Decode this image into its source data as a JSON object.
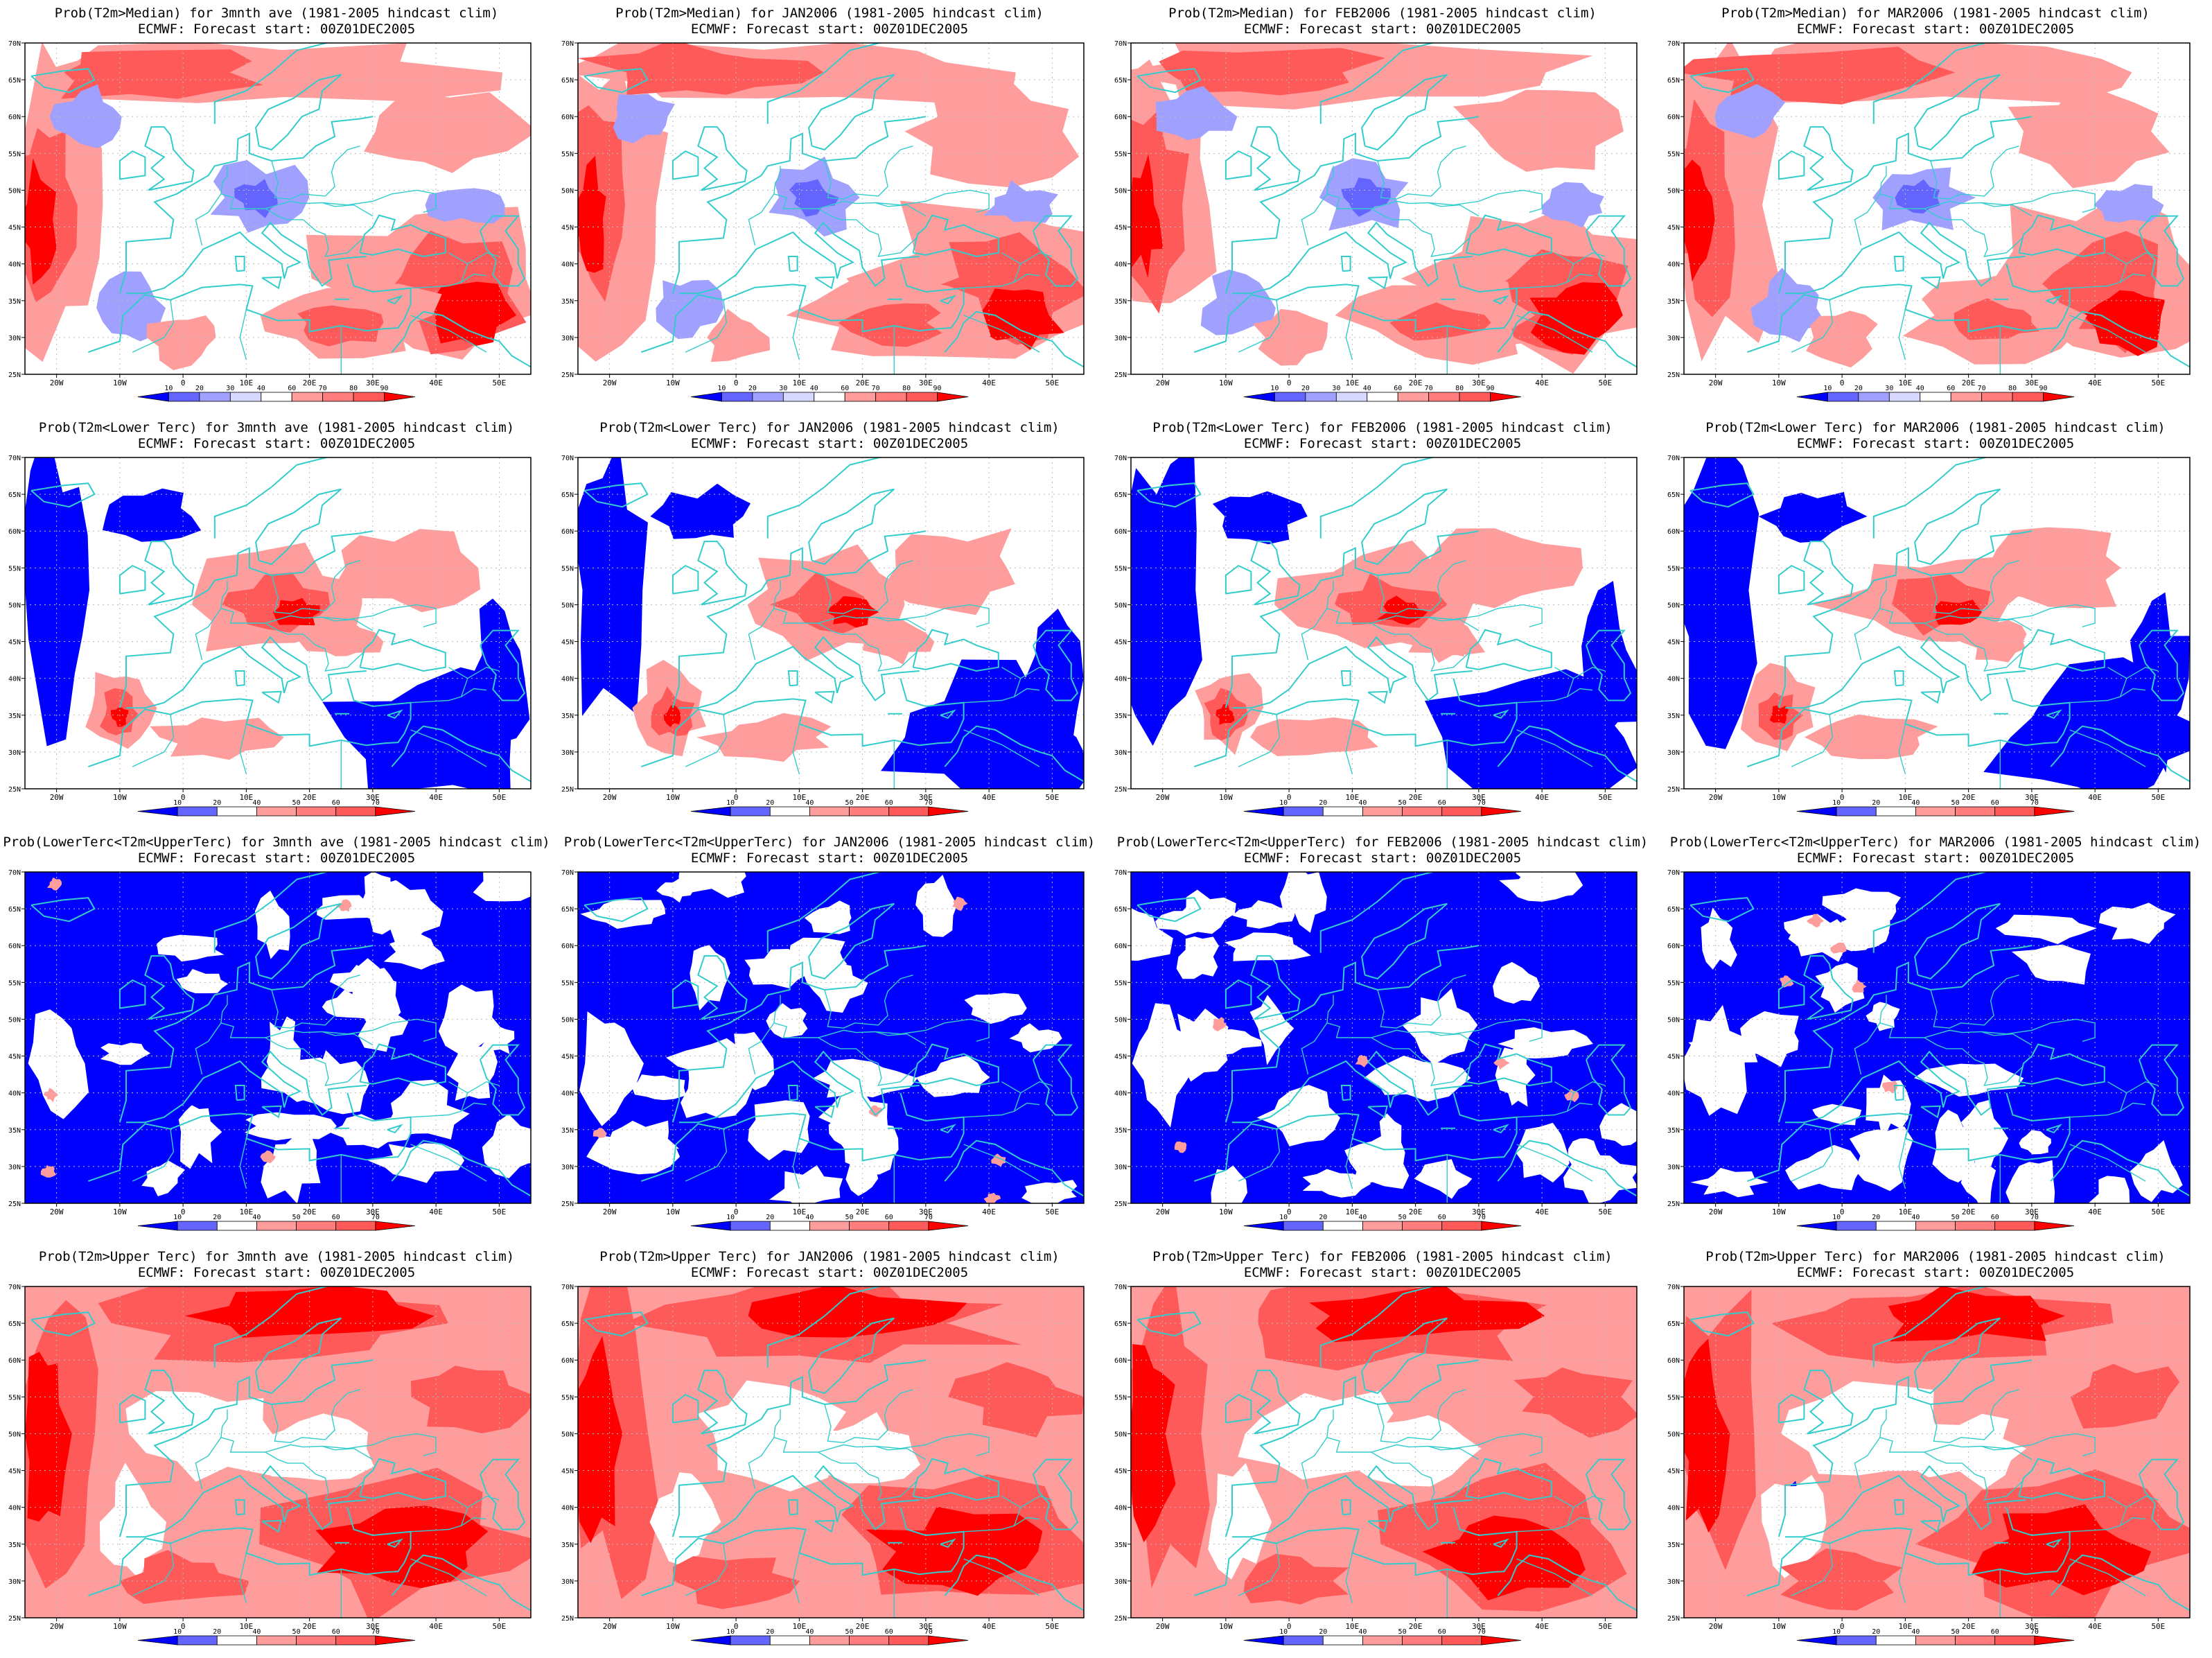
{
  "colors": {
    "red_dark": "#ff0000",
    "red_mid": "#ff5a5a",
    "red_light": "#ff9c9c",
    "blue_dark": "#0000ff",
    "blue_mid": "#6464ff",
    "blue_light": "#a0a0ff",
    "coast": "#33cccc",
    "background": "#ffffff"
  },
  "chart_data": [
    {
      "type": "heatmap",
      "title": "Prob(T2m>Median) for 3mnth ave (1981-2005 hindcast clim)",
      "subtitle": "ECMWF: Forecast start: 00Z01DEC2005",
      "xticks": [
        "20W",
        "10W",
        "0",
        "10E",
        "20E",
        "30E",
        "40E",
        "50E"
      ],
      "yticks": [
        "70N",
        "65N",
        "60N",
        "55N",
        "50N",
        "45N",
        "40N",
        "35N",
        "30N",
        "25N"
      ],
      "colorbar": [
        "10",
        "20",
        "30",
        "40",
        "60",
        "70",
        "80",
        "90"
      ],
      "xlim": [
        -25,
        55
      ],
      "ylim": [
        25,
        70
      ],
      "scheme": "median",
      "seed": 11
    },
    {
      "type": "heatmap",
      "title": "Prob(T2m>Median) for JAN2006 (1981-2005 hindcast clim)",
      "subtitle": "ECMWF: Forecast start: 00Z01DEC2005",
      "xticks": [
        "20W",
        "10W",
        "0",
        "10E",
        "20E",
        "30E",
        "40E",
        "50E"
      ],
      "yticks": [
        "70N",
        "65N",
        "60N",
        "55N",
        "50N",
        "45N",
        "40N",
        "35N",
        "30N",
        "25N"
      ],
      "colorbar": [
        "10",
        "20",
        "30",
        "40",
        "60",
        "70",
        "80",
        "90"
      ],
      "xlim": [
        -25,
        55
      ],
      "ylim": [
        25,
        70
      ],
      "scheme": "median",
      "seed": 23
    },
    {
      "type": "heatmap",
      "title": "Prob(T2m>Median) for FEB2006 (1981-2005 hindcast clim)",
      "subtitle": "ECMWF: Forecast start: 00Z01DEC2005",
      "xticks": [
        "20W",
        "10W",
        "0",
        "10E",
        "20E",
        "30E",
        "40E",
        "50E"
      ],
      "yticks": [
        "70N",
        "65N",
        "60N",
        "55N",
        "50N",
        "45N",
        "40N",
        "35N",
        "30N",
        "25N"
      ],
      "colorbar": [
        "10",
        "20",
        "30",
        "40",
        "60",
        "70",
        "80",
        "90"
      ],
      "xlim": [
        -25,
        55
      ],
      "ylim": [
        25,
        70
      ],
      "scheme": "median",
      "seed": 37
    },
    {
      "type": "heatmap",
      "title": "Prob(T2m>Median) for MAR2006 (1981-2005 hindcast clim)",
      "subtitle": "ECMWF: Forecast start: 00Z01DEC2005",
      "xticks": [
        "20W",
        "10W",
        "0",
        "10E",
        "20E",
        "30E",
        "40E",
        "50E"
      ],
      "yticks": [
        "70N",
        "65N",
        "60N",
        "55N",
        "50N",
        "45N",
        "40N",
        "35N",
        "30N",
        "25N"
      ],
      "colorbar": [
        "10",
        "20",
        "30",
        "40",
        "60",
        "70",
        "80",
        "90"
      ],
      "xlim": [
        -25,
        55
      ],
      "ylim": [
        25,
        70
      ],
      "scheme": "median",
      "seed": 41
    },
    {
      "type": "heatmap",
      "title": "Prob(T2m<Lower Terc) for 3mnth ave (1981-2005 hindcast clim)",
      "subtitle": "ECMWF: Forecast start: 00Z01DEC2005",
      "xticks": [
        "20W",
        "10W",
        "0",
        "10E",
        "20E",
        "30E",
        "40E",
        "50E"
      ],
      "yticks": [
        "70N",
        "65N",
        "60N",
        "55N",
        "50N",
        "45N",
        "40N",
        "35N",
        "30N",
        "25N"
      ],
      "colorbar": [
        "10",
        "20",
        "40",
        "50",
        "60",
        "70"
      ],
      "xlim": [
        -25,
        55
      ],
      "ylim": [
        25,
        70
      ],
      "scheme": "lower",
      "seed": 53
    },
    {
      "type": "heatmap",
      "title": "Prob(T2m<Lower Terc) for JAN2006 (1981-2005 hindcast clim)",
      "subtitle": "ECMWF: Forecast start: 00Z01DEC2005",
      "xticks": [
        "20W",
        "10W",
        "0",
        "10E",
        "20E",
        "30E",
        "40E",
        "50E"
      ],
      "yticks": [
        "70N",
        "65N",
        "60N",
        "55N",
        "50N",
        "45N",
        "40N",
        "35N",
        "30N",
        "25N"
      ],
      "colorbar": [
        "10",
        "20",
        "40",
        "50",
        "60",
        "70"
      ],
      "xlim": [
        -25,
        55
      ],
      "ylim": [
        25,
        70
      ],
      "scheme": "lower",
      "seed": 67
    },
    {
      "type": "heatmap",
      "title": "Prob(T2m<Lower Terc) for FEB2006 (1981-2005 hindcast clim)",
      "subtitle": "ECMWF: Forecast start: 00Z01DEC2005",
      "xticks": [
        "20W",
        "10W",
        "0",
        "10E",
        "20E",
        "30E",
        "40E",
        "50E"
      ],
      "yticks": [
        "70N",
        "65N",
        "60N",
        "55N",
        "50N",
        "45N",
        "40N",
        "35N",
        "30N",
        "25N"
      ],
      "colorbar": [
        "10",
        "20",
        "40",
        "50",
        "60",
        "70"
      ],
      "xlim": [
        -25,
        55
      ],
      "ylim": [
        25,
        70
      ],
      "scheme": "lower",
      "seed": 71
    },
    {
      "type": "heatmap",
      "title": "Prob(T2m<Lower Terc) for MAR2006 (1981-2005 hindcast clim)",
      "subtitle": "ECMWF: Forecast start: 00Z01DEC2005",
      "xticks": [
        "20W",
        "10W",
        "0",
        "10E",
        "20E",
        "30E",
        "40E",
        "50E"
      ],
      "yticks": [
        "70N",
        "65N",
        "60N",
        "55N",
        "50N",
        "45N",
        "40N",
        "35N",
        "30N",
        "25N"
      ],
      "colorbar": [
        "10",
        "20",
        "40",
        "50",
        "60",
        "70"
      ],
      "xlim": [
        -25,
        55
      ],
      "ylim": [
        25,
        70
      ],
      "scheme": "lower",
      "seed": 83
    },
    {
      "type": "heatmap",
      "title": "Prob(LowerTerc<T2m<UpperTerc) for 3mnth ave (1981-2005 hindcast clim)",
      "subtitle": "ECMWF: Forecast start: 00Z01DEC2005",
      "xticks": [
        "20W",
        "10W",
        "0",
        "10E",
        "20E",
        "30E",
        "40E",
        "50E"
      ],
      "yticks": [
        "70N",
        "65N",
        "60N",
        "55N",
        "50N",
        "45N",
        "40N",
        "35N",
        "30N",
        "25N"
      ],
      "colorbar": [
        "10",
        "20",
        "40",
        "50",
        "60",
        "70"
      ],
      "xlim": [
        -25,
        55
      ],
      "ylim": [
        25,
        70
      ],
      "scheme": "middle",
      "seed": 97
    },
    {
      "type": "heatmap",
      "title": "Prob(LowerTerc<T2m<UpperTerc) for JAN2006 (1981-2005 hindcast clim)",
      "subtitle": "ECMWF: Forecast start: 00Z01DEC2005",
      "xticks": [
        "20W",
        "10W",
        "0",
        "10E",
        "20E",
        "30E",
        "40E",
        "50E"
      ],
      "yticks": [
        "70N",
        "65N",
        "60N",
        "55N",
        "50N",
        "45N",
        "40N",
        "35N",
        "30N",
        "25N"
      ],
      "colorbar": [
        "10",
        "20",
        "40",
        "50",
        "60",
        "70"
      ],
      "xlim": [
        -25,
        55
      ],
      "ylim": [
        25,
        70
      ],
      "scheme": "middle",
      "seed": 101
    },
    {
      "type": "heatmap",
      "title": "Prob(LowerTerc<T2m<UpperTerc) for FEB2006 (1981-2005 hindcast clim)",
      "subtitle": "ECMWF: Forecast start: 00Z01DEC2005",
      "xticks": [
        "20W",
        "10W",
        "0",
        "10E",
        "20E",
        "30E",
        "40E",
        "50E"
      ],
      "yticks": [
        "70N",
        "65N",
        "60N",
        "55N",
        "50N",
        "45N",
        "40N",
        "35N",
        "30N",
        "25N"
      ],
      "colorbar": [
        "10",
        "20",
        "40",
        "50",
        "60",
        "70"
      ],
      "xlim": [
        -25,
        55
      ],
      "ylim": [
        25,
        70
      ],
      "scheme": "middle",
      "seed": 113
    },
    {
      "type": "heatmap",
      "title": "Prob(LowerTerc<T2m<UpperTerc) for MAR2006 (1981-2005 hindcast clim)",
      "subtitle": "ECMWF: Forecast start: 00Z01DEC2005",
      "xticks": [
        "20W",
        "10W",
        "0",
        "10E",
        "20E",
        "30E",
        "40E",
        "50E"
      ],
      "yticks": [
        "70N",
        "65N",
        "60N",
        "55N",
        "50N",
        "45N",
        "40N",
        "35N",
        "30N",
        "25N"
      ],
      "colorbar": [
        "10",
        "20",
        "40",
        "50",
        "60",
        "70"
      ],
      "xlim": [
        -25,
        55
      ],
      "ylim": [
        25,
        70
      ],
      "scheme": "middle",
      "seed": 127
    },
    {
      "type": "heatmap",
      "title": "Prob(T2m>Upper Terc) for 3mnth ave (1981-2005 hindcast clim)",
      "subtitle": "ECMWF: Forecast start: 00Z01DEC2005",
      "xticks": [
        "20W",
        "10W",
        "0",
        "10E",
        "20E",
        "30E",
        "40E",
        "50E"
      ],
      "yticks": [
        "70N",
        "65N",
        "60N",
        "55N",
        "50N",
        "45N",
        "40N",
        "35N",
        "30N",
        "25N"
      ],
      "colorbar": [
        "10",
        "20",
        "40",
        "50",
        "60",
        "70"
      ],
      "xlim": [
        -25,
        55
      ],
      "ylim": [
        25,
        70
      ],
      "scheme": "upper",
      "seed": 131
    },
    {
      "type": "heatmap",
      "title": "Prob(T2m>Upper Terc) for JAN2006 (1981-2005 hindcast clim)",
      "subtitle": "ECMWF: Forecast start: 00Z01DEC2005",
      "xticks": [
        "20W",
        "10W",
        "0",
        "10E",
        "20E",
        "30E",
        "40E",
        "50E"
      ],
      "yticks": [
        "70N",
        "65N",
        "60N",
        "55N",
        "50N",
        "45N",
        "40N",
        "35N",
        "30N",
        "25N"
      ],
      "colorbar": [
        "10",
        "20",
        "40",
        "50",
        "60",
        "70"
      ],
      "xlim": [
        -25,
        55
      ],
      "ylim": [
        25,
        70
      ],
      "scheme": "upper",
      "seed": 139
    },
    {
      "type": "heatmap",
      "title": "Prob(T2m>Upper Terc) for FEB2006 (1981-2005 hindcast clim)",
      "subtitle": "ECMWF: Forecast start: 00Z01DEC2005",
      "xticks": [
        "20W",
        "10W",
        "0",
        "10E",
        "20E",
        "30E",
        "40E",
        "50E"
      ],
      "yticks": [
        "70N",
        "65N",
        "60N",
        "55N",
        "50N",
        "45N",
        "40N",
        "35N",
        "30N",
        "25N"
      ],
      "colorbar": [
        "10",
        "20",
        "40",
        "50",
        "60",
        "70"
      ],
      "xlim": [
        -25,
        55
      ],
      "ylim": [
        25,
        70
      ],
      "scheme": "upper",
      "seed": 149
    },
    {
      "type": "heatmap",
      "title": "Prob(T2m>Upper Terc) for MAR2006 (1981-2005 hindcast clim)",
      "subtitle": "ECMWF: Forecast start: 00Z01DEC2005",
      "xticks": [
        "20W",
        "10W",
        "0",
        "10E",
        "20E",
        "30E",
        "40E",
        "50E"
      ],
      "yticks": [
        "70N",
        "65N",
        "60N",
        "55N",
        "50N",
        "45N",
        "40N",
        "35N",
        "30N",
        "25N"
      ],
      "colorbar": [
        "10",
        "20",
        "40",
        "50",
        "60",
        "70"
      ],
      "xlim": [
        -25,
        55
      ],
      "ylim": [
        25,
        70
      ],
      "scheme": "upper",
      "seed": 157
    }
  ]
}
